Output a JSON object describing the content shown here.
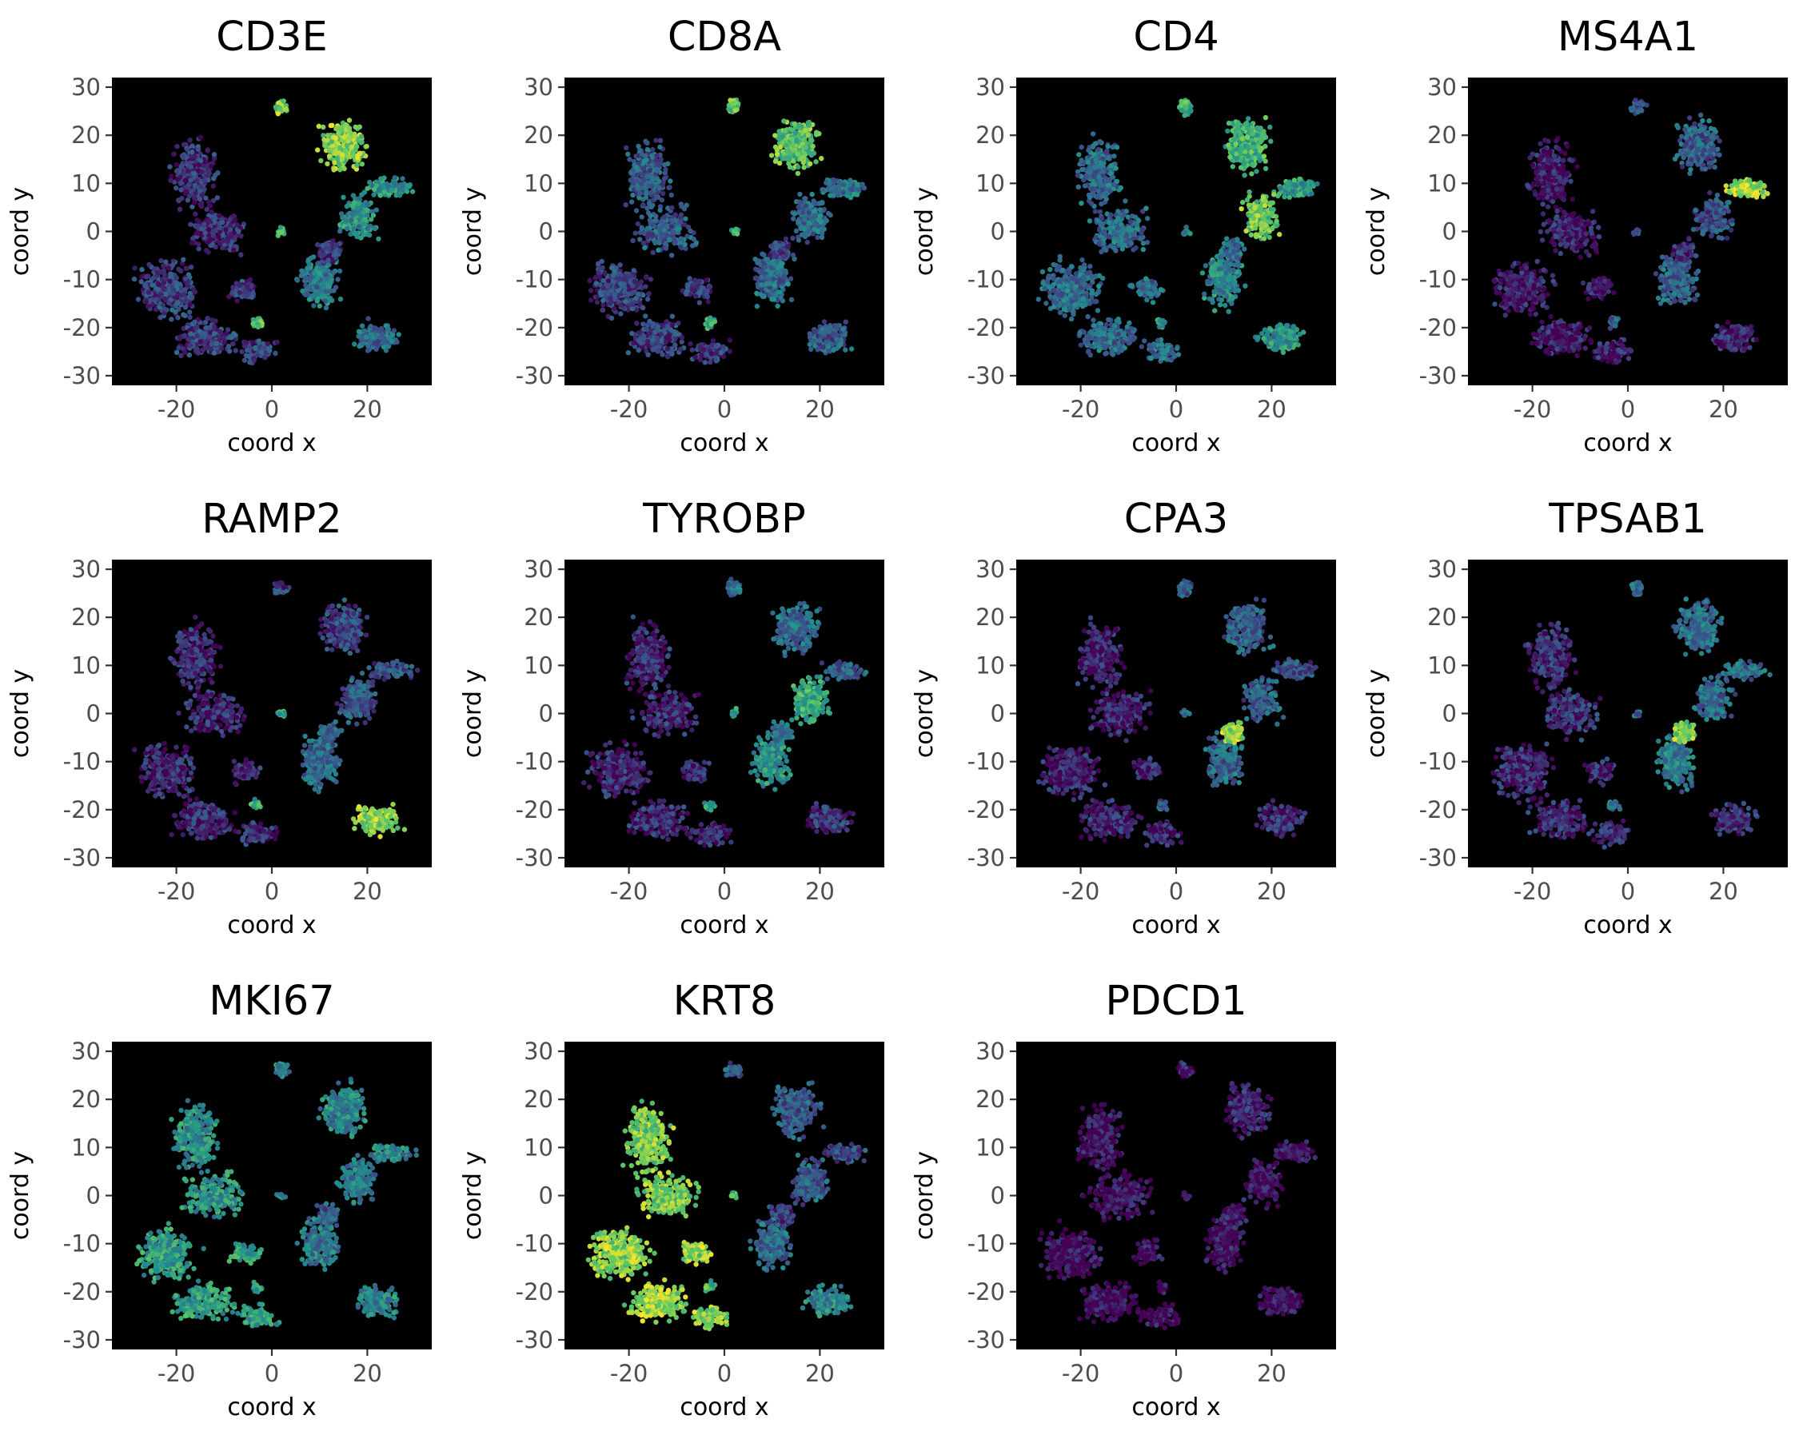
{
  "colors": {
    "panel_background": "#000000",
    "page_background": "#ffffff",
    "scale": [
      "#440154",
      "#3b528b",
      "#21918c",
      "#5ec962",
      "#fde725"
    ],
    "scale_name": "viridis"
  },
  "chart_data": [
    {
      "type": "scatter",
      "title": "CD3E",
      "xlabel": "coord x",
      "ylabel": "coord y",
      "xlim": [
        -33.5,
        33.5
      ],
      "ylim": [
        -32,
        32
      ],
      "xticks": [
        -20,
        0,
        20
      ],
      "yticks": [
        -30,
        -20,
        -10,
        0,
        10,
        20,
        30
      ],
      "tick_labels_x": [
        "-20",
        "0",
        "20"
      ],
      "tick_labels_y": [
        "-30",
        "-20",
        "-10",
        "0",
        "10",
        "20",
        "30"
      ],
      "legend": "none",
      "grid": false,
      "expression": {
        "t_cells": 0.8,
        "cd4_branch": 0.5,
        "b_cells": 0.5,
        "myeloid": 0.4,
        "endothelial": 0.35,
        "epithelial": 0.2,
        "mast": 0.15,
        "left_lobe": 0.15,
        "small_clusters": 0.7
      }
    },
    {
      "type": "scatter",
      "title": "CD8A",
      "xlabel": "coord x",
      "ylabel": "coord y",
      "xlim": [
        -33.5,
        33.5
      ],
      "ylim": [
        -32,
        32
      ],
      "xticks": [
        -20,
        0,
        20
      ],
      "yticks": [
        -30,
        -20,
        -10,
        0,
        10,
        20,
        30
      ],
      "tick_labels_x": [
        "-20",
        "0",
        "20"
      ],
      "tick_labels_y": [
        "-30",
        "-20",
        "-10",
        "0",
        "10",
        "20",
        "30"
      ],
      "legend": "none",
      "grid": false,
      "expression": {
        "t_cells": 0.72,
        "cd4_branch": 0.35,
        "b_cells": 0.4,
        "myeloid": 0.35,
        "endothelial": 0.3,
        "epithelial": 0.2,
        "mast": 0.2,
        "left_lobe": 0.3,
        "small_clusters": 0.6
      }
    },
    {
      "type": "scatter",
      "title": "CD4",
      "xlabel": "coord x",
      "ylabel": "coord y",
      "xlim": [
        -33.5,
        33.5
      ],
      "ylim": [
        -32,
        32
      ],
      "xticks": [
        -20,
        0,
        20
      ],
      "yticks": [
        -30,
        -20,
        -10,
        0,
        10,
        20,
        30
      ],
      "tick_labels_x": [
        "-20",
        "0",
        "20"
      ],
      "tick_labels_y": [
        "-30",
        "-20",
        "-10",
        "0",
        "10",
        "20",
        "30"
      ],
      "legend": "none",
      "grid": false,
      "expression": {
        "t_cells": 0.65,
        "cd4_branch": 0.75,
        "b_cells": 0.55,
        "myeloid": 0.45,
        "endothelial": 0.5,
        "epithelial": 0.35,
        "mast": 0.35,
        "left_lobe": 0.35,
        "small_clusters": 0.5
      }
    },
    {
      "type": "scatter",
      "title": "MS4A1",
      "xlabel": "coord x",
      "ylabel": "coord y",
      "xlim": [
        -33.5,
        33.5
      ],
      "ylim": [
        -32,
        32
      ],
      "xticks": [
        -20,
        0,
        20
      ],
      "yticks": [
        -30,
        -20,
        -10,
        0,
        10,
        20,
        30
      ],
      "tick_labels_x": [
        "-20",
        "0",
        "20"
      ],
      "tick_labels_y": [
        "-30",
        "-20",
        "-10",
        "0",
        "10",
        "20",
        "30"
      ],
      "legend": "none",
      "grid": false,
      "expression": {
        "t_cells": 0.3,
        "cd4_branch": 0.25,
        "b_cells": 0.85,
        "myeloid": 0.3,
        "endothelial": 0.12,
        "epithelial": 0.08,
        "mast": 0.12,
        "left_lobe": 0.08,
        "small_clusters": 0.3
      }
    },
    {
      "type": "scatter",
      "title": "RAMP2",
      "xlabel": "coord x",
      "ylabel": "coord y",
      "xlim": [
        -33.5,
        33.5
      ],
      "ylim": [
        -32,
        32
      ],
      "xticks": [
        -20,
        0,
        20
      ],
      "yticks": [
        -30,
        -20,
        -10,
        0,
        10,
        20,
        30
      ],
      "tick_labels_x": [
        "-20",
        "0",
        "20"
      ],
      "tick_labels_y": [
        "-30",
        "-20",
        "-10",
        "0",
        "10",
        "20",
        "30"
      ],
      "legend": "none",
      "grid": false,
      "expression": {
        "t_cells": 0.2,
        "cd4_branch": 0.25,
        "b_cells": 0.25,
        "myeloid": 0.35,
        "endothelial": 0.82,
        "epithelial": 0.12,
        "mast": 0.3,
        "left_lobe": 0.12,
        "small_clusters": 0.6
      }
    },
    {
      "type": "scatter",
      "title": "TYROBP",
      "xlabel": "coord x",
      "ylabel": "coord y",
      "xlim": [
        -33.5,
        33.5
      ],
      "ylim": [
        -32,
        32
      ],
      "xticks": [
        -20,
        0,
        20
      ],
      "yticks": [
        -30,
        -20,
        -10,
        0,
        10,
        20,
        30
      ],
      "tick_labels_x": [
        "-20",
        "0",
        "20"
      ],
      "tick_labels_y": [
        "-30",
        "-20",
        "-10",
        "0",
        "10",
        "20",
        "30"
      ],
      "legend": "none",
      "grid": false,
      "expression": {
        "t_cells": 0.35,
        "cd4_branch": 0.62,
        "b_cells": 0.3,
        "myeloid": 0.5,
        "endothelial": 0.15,
        "epithelial": 0.12,
        "mast": 0.4,
        "left_lobe": 0.12,
        "small_clusters": 0.55
      }
    },
    {
      "type": "scatter",
      "title": "CPA3",
      "xlabel": "coord x",
      "ylabel": "coord y",
      "xlim": [
        -33.5,
        33.5
      ],
      "ylim": [
        -32,
        32
      ],
      "xticks": [
        -20,
        0,
        20
      ],
      "yticks": [
        -30,
        -20,
        -10,
        0,
        10,
        20,
        30
      ],
      "tick_labels_x": [
        "-20",
        "0",
        "20"
      ],
      "tick_labels_y": [
        "-30",
        "-20",
        "-10",
        "0",
        "10",
        "20",
        "30"
      ],
      "legend": "none",
      "grid": false,
      "expression": {
        "t_cells": 0.3,
        "cd4_branch": 0.3,
        "b_cells": 0.25,
        "myeloid": 0.35,
        "endothelial": 0.12,
        "epithelial": 0.1,
        "mast": 0.85,
        "left_lobe": 0.1,
        "small_clusters": 0.3
      }
    },
    {
      "type": "scatter",
      "title": "TPSAB1",
      "xlabel": "coord x",
      "ylabel": "coord y",
      "xlim": [
        -33.5,
        33.5
      ],
      "ylim": [
        -32,
        32
      ],
      "xticks": [
        -20,
        0,
        20
      ],
      "yticks": [
        -30,
        -20,
        -10,
        0,
        10,
        20,
        30
      ],
      "tick_labels_x": [
        "-20",
        "0",
        "20"
      ],
      "tick_labels_y": [
        "-30",
        "-20",
        "-10",
        "0",
        "10",
        "20",
        "30"
      ],
      "legend": "none",
      "grid": false,
      "expression": {
        "t_cells": 0.35,
        "cd4_branch": 0.35,
        "b_cells": 0.35,
        "myeloid": 0.4,
        "endothelial": 0.15,
        "epithelial": 0.12,
        "mast": 0.8,
        "left_lobe": 0.15,
        "small_clusters": 0.35
      }
    },
    {
      "type": "scatter",
      "title": "MKI67",
      "xlabel": "coord x",
      "ylabel": "coord y",
      "xlim": [
        -33.5,
        33.5
      ],
      "ylim": [
        -32,
        32
      ],
      "xticks": [
        -20,
        0,
        20
      ],
      "yticks": [
        -30,
        -20,
        -10,
        0,
        10,
        20,
        30
      ],
      "tick_labels_x": [
        "-20",
        "0",
        "20"
      ],
      "tick_labels_y": [
        "-30",
        "-20",
        "-10",
        "0",
        "10",
        "20",
        "30"
      ],
      "legend": "none",
      "grid": false,
      "expression": {
        "t_cells": 0.45,
        "cd4_branch": 0.4,
        "b_cells": 0.45,
        "myeloid": 0.4,
        "endothelial": 0.45,
        "epithelial": 0.55,
        "mast": 0.3,
        "left_lobe": 0.5,
        "small_clusters": 0.5
      }
    },
    {
      "type": "scatter",
      "title": "KRT8",
      "xlabel": "coord x",
      "ylabel": "coord y",
      "xlim": [
        -33.5,
        33.5
      ],
      "ylim": [
        -32,
        32
      ],
      "xticks": [
        -20,
        0,
        20
      ],
      "yticks": [
        -30,
        -20,
        -10,
        0,
        10,
        20,
        30
      ],
      "tick_labels_x": [
        "-20",
        "0",
        "20"
      ],
      "tick_labels_y": [
        "-30",
        "-20",
        "-10",
        "0",
        "10",
        "20",
        "30"
      ],
      "legend": "none",
      "grid": false,
      "expression": {
        "t_cells": 0.3,
        "cd4_branch": 0.3,
        "b_cells": 0.25,
        "myeloid": 0.35,
        "endothelial": 0.45,
        "epithelial": 0.82,
        "mast": 0.2,
        "left_lobe": 0.78,
        "small_clusters": 0.65
      }
    },
    {
      "type": "scatter",
      "title": "PDCD1",
      "xlabel": "coord x",
      "ylabel": "coord y",
      "xlim": [
        -33.5,
        33.5
      ],
      "ylim": [
        -32,
        32
      ],
      "xticks": [
        -20,
        0,
        20
      ],
      "yticks": [
        -30,
        -20,
        -10,
        0,
        10,
        20,
        30
      ],
      "tick_labels_x": [
        "-20",
        "0",
        "20"
      ],
      "tick_labels_y": [
        "-30",
        "-20",
        "-10",
        "0",
        "10",
        "20",
        "30"
      ],
      "legend": "none",
      "grid": false,
      "expression": {
        "t_cells": 0.1,
        "cd4_branch": 0.04,
        "b_cells": 0.04,
        "myeloid": 0.04,
        "endothelial": 0.03,
        "epithelial": 0.03,
        "mast": 0.04,
        "left_lobe": 0.03,
        "small_clusters": 0.05
      }
    }
  ]
}
